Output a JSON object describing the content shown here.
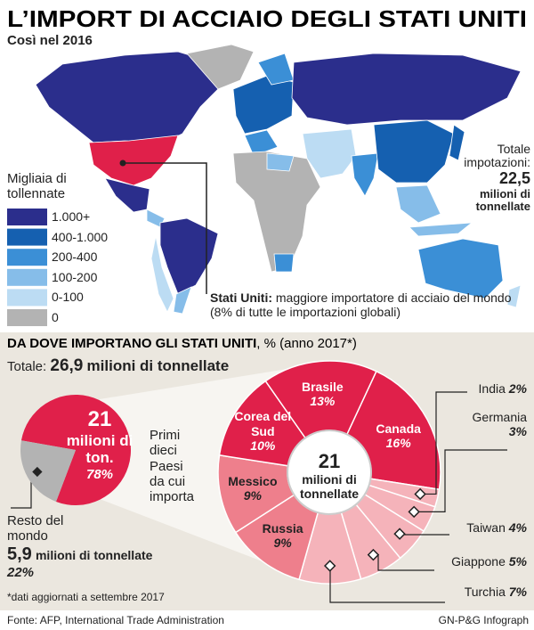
{
  "header": {
    "title": "L’IMPORT DI ACCIAIO DEGLI STATI UNITI",
    "subtitle": "Così nel 2016"
  },
  "map": {
    "legend_title": "Migliaia di tollennate",
    "legend": [
      {
        "label": "1.000+",
        "color": "#2b2e8c"
      },
      {
        "label": "400-1.000",
        "color": "#1560b0"
      },
      {
        "label": "200-400",
        "color": "#3b8fd6"
      },
      {
        "label": "100-200",
        "color": "#86bde9"
      },
      {
        "label": "0-100",
        "color": "#bcdcf3"
      },
      {
        "label": "0",
        "color": "#b3b3b3"
      }
    ],
    "total_label": "Totale impotazioni:",
    "total_number": "22,5",
    "total_unit": "milioni di tonnellate",
    "us_bold": "Stati Uniti:",
    "us_text": "maggiore importatore di acciaio del mondo (8% di tutte le importazioni globali)"
  },
  "section": {
    "heading": "DA DOVE IMPORTANO GLI STATI UNITI",
    "heading_unit": ", % (anno 2017*)",
    "total_label": "Totale:",
    "total_number": "26,9",
    "total_unit": "milioni di tonnellate"
  },
  "chart_data": [
    {
      "type": "pie",
      "categories": [
        "Primi dieci Paesi da cui importa",
        "Resto del mondo"
      ],
      "values": [
        78,
        22
      ],
      "value_labels": [
        "78%",
        "22%"
      ],
      "colors": [
        "#e0204a",
        "#b3b3b3"
      ],
      "annotations": [
        {
          "number": "21",
          "unit": "milioni di ton."
        },
        {
          "number": "5,9",
          "unit": "milioni di tonnellate"
        }
      ]
    },
    {
      "type": "donut",
      "categories": [
        "Canada",
        "India",
        "Germania",
        "Taiwan",
        "Giappone",
        "Turchia",
        "Russia",
        "Messico",
        "Corea del Sud",
        "Brasile"
      ],
      "values": [
        16,
        2,
        3,
        4,
        5,
        7,
        9,
        9,
        10,
        13
      ],
      "value_labels": [
        "16%",
        "2%",
        "3%",
        "4%",
        "5%",
        "7%",
        "9%",
        "9%",
        "10%",
        "13%"
      ],
      "colors": [
        "#e0204a",
        "#f5b3ba",
        "#f5b3ba",
        "#f5b3ba",
        "#f5b3ba",
        "#f5b3ba",
        "#ee7f8c",
        "#ee7f8c",
        "#e0204a",
        "#e0204a"
      ],
      "center_label": {
        "number": "21",
        "unit": "milioni di tonnellate"
      }
    }
  ],
  "footnote": "*dati aggiornati a settembre 2017",
  "source": "Fonte: AFP, International Trade Administration",
  "credit": "GN-P&G Infograph"
}
